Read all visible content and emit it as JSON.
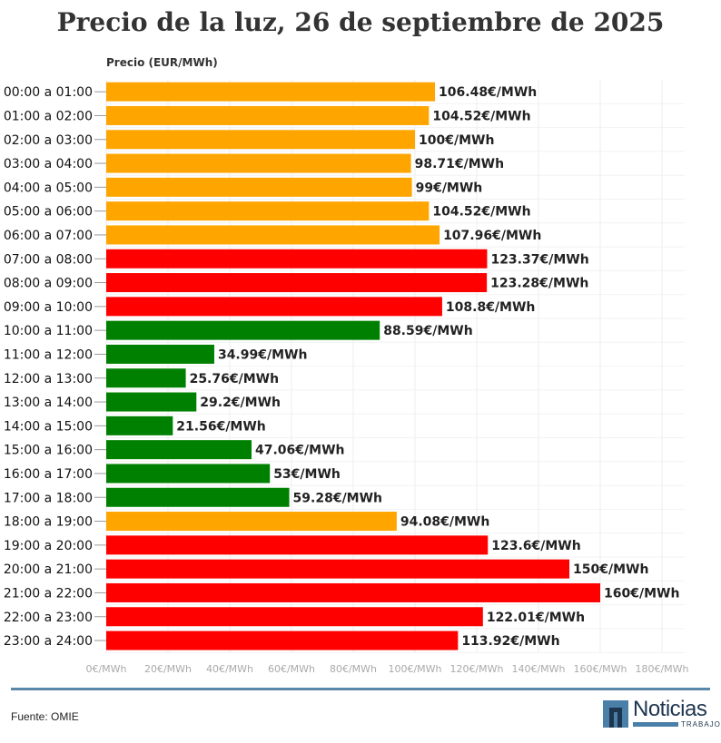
{
  "title": "Precio de la luz, 26 de septiembre de 2025",
  "source": "Fuente: OMIE",
  "logo": {
    "name": "Noticias",
    "sub": "TRABAJO"
  },
  "colors": {
    "orange": "#FFA500",
    "red": "#FF0000",
    "green": "#008000"
  },
  "chart_data": {
    "type": "bar",
    "orientation": "horizontal",
    "title": "Precio de la luz, 26 de septiembre de 2025",
    "xlabel": "Precio (EUR/MWh)",
    "xlim": [
      0,
      180
    ],
    "xticks": [
      "0€/MWh",
      "20€/MWh",
      "40€/MWh",
      "60€/MWh",
      "80€/MWh",
      "100€/MWh",
      "120€/MWh",
      "140€/MWh",
      "160€/MWh",
      "180€/MWh"
    ],
    "grid": true,
    "categories": [
      "00:00 a 01:00",
      "01:00 a 02:00",
      "02:00 a 03:00",
      "03:00 a 04:00",
      "04:00 a 05:00",
      "05:00 a 06:00",
      "06:00 a 07:00",
      "07:00 a 08:00",
      "08:00 a 09:00",
      "09:00 a 10:00",
      "10:00 a 11:00",
      "11:00 a 12:00",
      "12:00 a 13:00",
      "13:00 a 14:00",
      "14:00 a 15:00",
      "15:00 a 16:00",
      "16:00 a 17:00",
      "17:00 a 18:00",
      "18:00 a 19:00",
      "19:00 a 20:00",
      "20:00 a 21:00",
      "21:00 a 22:00",
      "22:00 a 23:00",
      "23:00 a 24:00"
    ],
    "values": [
      106.48,
      104.52,
      100,
      98.71,
      99,
      104.52,
      107.96,
      123.37,
      123.28,
      108.8,
      88.59,
      34.99,
      25.76,
      29.2,
      21.56,
      47.06,
      53,
      59.28,
      94.08,
      123.6,
      150,
      160,
      122.01,
      113.92
    ],
    "labels": [
      "106.48€/MWh",
      "104.52€/MWh",
      "100€/MWh",
      "98.71€/MWh",
      "99€/MWh",
      "104.52€/MWh",
      "107.96€/MWh",
      "123.37€/MWh",
      "123.28€/MWh",
      "108.8€/MWh",
      "88.59€/MWh",
      "34.99€/MWh",
      "25.76€/MWh",
      "29.2€/MWh",
      "21.56€/MWh",
      "47.06€/MWh",
      "53€/MWh",
      "59.28€/MWh",
      "94.08€/MWh",
      "123.6€/MWh",
      "150€/MWh",
      "160€/MWh",
      "122.01€/MWh",
      "113.92€/MWh"
    ],
    "bar_colors": [
      "orange",
      "orange",
      "orange",
      "orange",
      "orange",
      "orange",
      "orange",
      "red",
      "red",
      "red",
      "green",
      "green",
      "green",
      "green",
      "green",
      "green",
      "green",
      "green",
      "orange",
      "red",
      "red",
      "red",
      "red",
      "red"
    ]
  }
}
